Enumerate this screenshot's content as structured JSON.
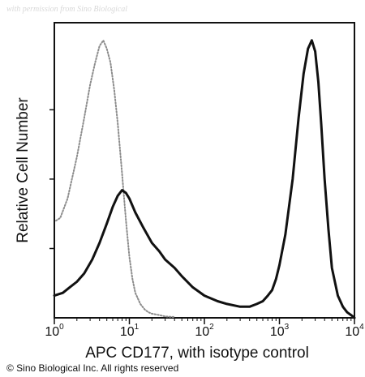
{
  "watermark": "with permission from Sino Biological",
  "copyright": "© Sino Biological Inc. All rights reserved",
  "chart_data": {
    "type": "line",
    "title": "",
    "xlabel": "APC CD177, with isotype control",
    "ylabel": "Relative Cell Number",
    "x_scale": "log",
    "xlim": [
      1,
      10000
    ],
    "ylim": [
      0,
      100
    ],
    "grid": false,
    "legend": "none",
    "x_ticks": [
      {
        "base": "10",
        "exp": "0",
        "value": 1
      },
      {
        "base": "10",
        "exp": "1",
        "value": 10
      },
      {
        "base": "10",
        "exp": "2",
        "value": 100
      },
      {
        "base": "10",
        "exp": "3",
        "value": 1000
      },
      {
        "base": "10",
        "exp": "4",
        "value": 10000
      }
    ],
    "series": [
      {
        "style": "dotted-gray",
        "color": "#8c8c8c",
        "x": [
          1.05,
          1.2,
          1.5,
          2.0,
          2.5,
          3.0,
          3.5,
          4.0,
          4.5,
          5.0,
          5.6,
          6.3,
          7.0,
          8.0,
          9.0,
          10,
          11,
          12,
          14,
          16,
          18,
          20,
          25,
          30,
          40
        ],
        "y": [
          35,
          36,
          43,
          58,
          72,
          84,
          92,
          98,
          100,
          97,
          92,
          82,
          70,
          52,
          35,
          22,
          14,
          9,
          5,
          3,
          2,
          1.5,
          1,
          0.5,
          0.3
        ]
      },
      {
        "style": "solid-black",
        "color": "#111111",
        "x": [
          1.0,
          1.3,
          1.6,
          2.0,
          2.5,
          3.2,
          4.0,
          5.0,
          6.0,
          7.0,
          8.0,
          9.0,
          10,
          12,
          15,
          20,
          25,
          30,
          40,
          50,
          70,
          100,
          150,
          200,
          300,
          400,
          500,
          600,
          700,
          800,
          900,
          1000,
          1200,
          1500,
          1800,
          2100,
          2400,
          2700,
          3000,
          3300,
          3600,
          4000,
          4500,
          5000,
          6000,
          7000,
          8000,
          9000,
          10000
        ],
        "y": [
          8,
          9,
          11,
          13,
          16,
          21,
          27,
          34,
          40,
          44,
          46,
          45,
          43,
          38,
          33,
          27,
          24,
          21,
          18,
          15,
          11,
          8,
          6,
          5,
          4,
          4,
          5,
          6,
          8,
          10,
          14,
          19,
          30,
          50,
          72,
          88,
          97,
          100,
          96,
          85,
          70,
          50,
          32,
          18,
          8,
          4,
          2,
          1,
          0
        ]
      }
    ]
  }
}
